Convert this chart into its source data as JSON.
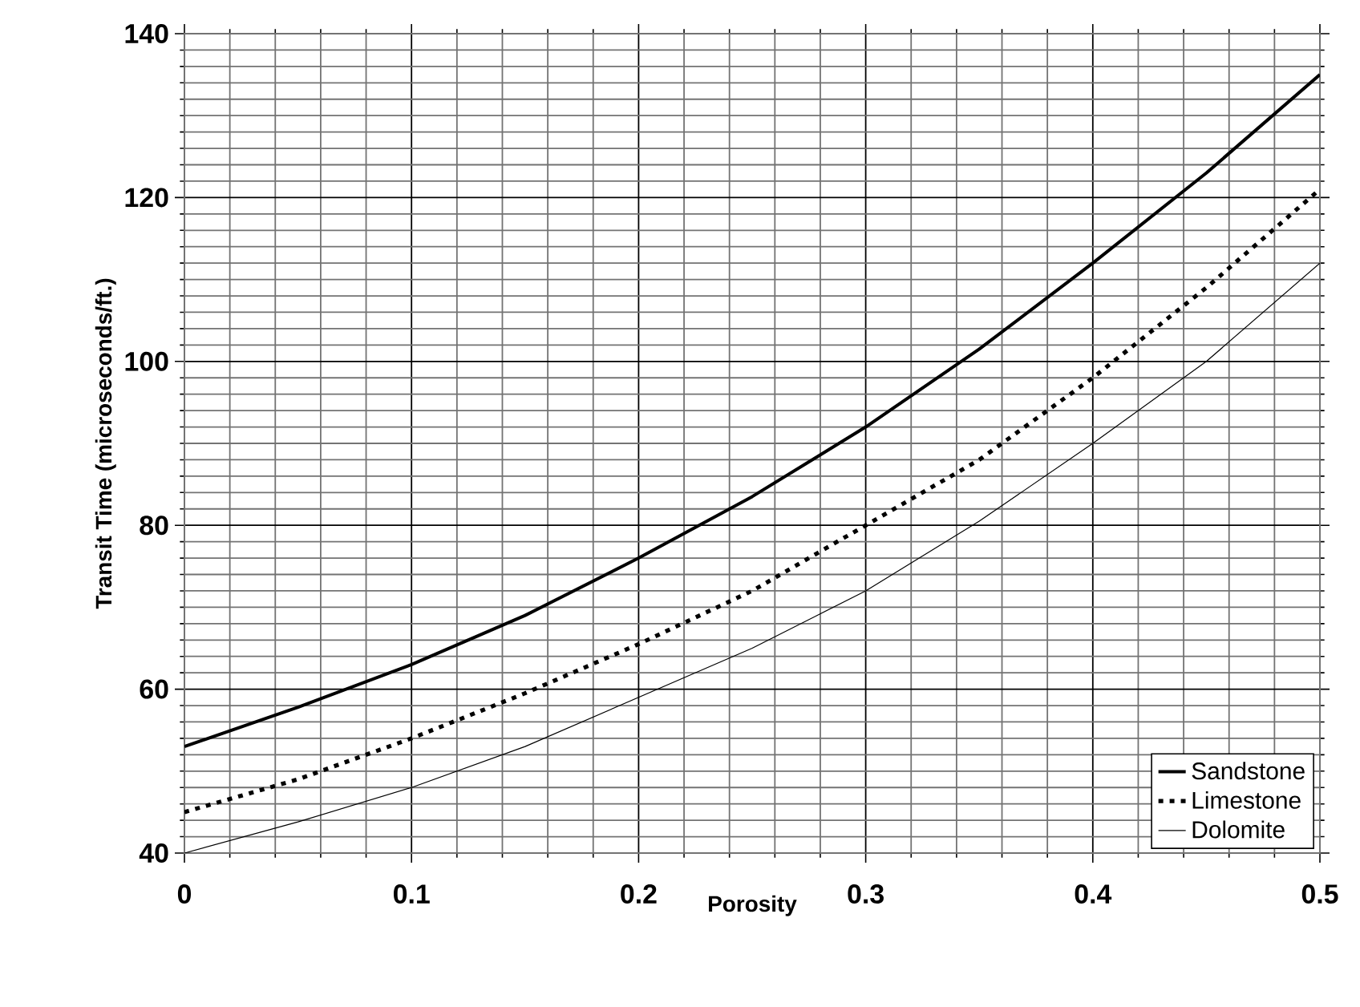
{
  "chart_data": {
    "type": "line",
    "xlabel": "Porosity",
    "ylabel": "Transit Time (microseconds/ft.)",
    "x": [
      0,
      0.05,
      0.1,
      0.15,
      0.2,
      0.25,
      0.3,
      0.35,
      0.4,
      0.45,
      0.5
    ],
    "series": [
      {
        "name": "Sandstone",
        "color": "#000000",
        "line_style": "solid",
        "values": [
          53,
          57.8,
          63,
          69,
          76,
          83.5,
          92,
          101.5,
          112,
          123,
          135
        ]
      },
      {
        "name": "Limestone",
        "color": "#000000",
        "line_style": "dotted",
        "values": [
          45,
          49,
          54,
          59.5,
          65.5,
          72,
          80,
          88,
          98,
          109,
          121
        ]
      },
      {
        "name": "Dolomite",
        "color": "#000000",
        "line_style": "solid",
        "values": [
          40,
          43.8,
          48,
          53,
          59,
          65,
          72,
          80.5,
          90,
          100,
          112
        ]
      }
    ],
    "xlim": [
      0,
      0.5
    ],
    "xticks": [
      0,
      0.1,
      0.2,
      0.3,
      0.4,
      0.5
    ],
    "ylim": [
      40,
      140
    ],
    "yticks": [
      40,
      60,
      80,
      100,
      120,
      140
    ],
    "grid": true,
    "legend": "bottom right",
    "marker": "none"
  }
}
